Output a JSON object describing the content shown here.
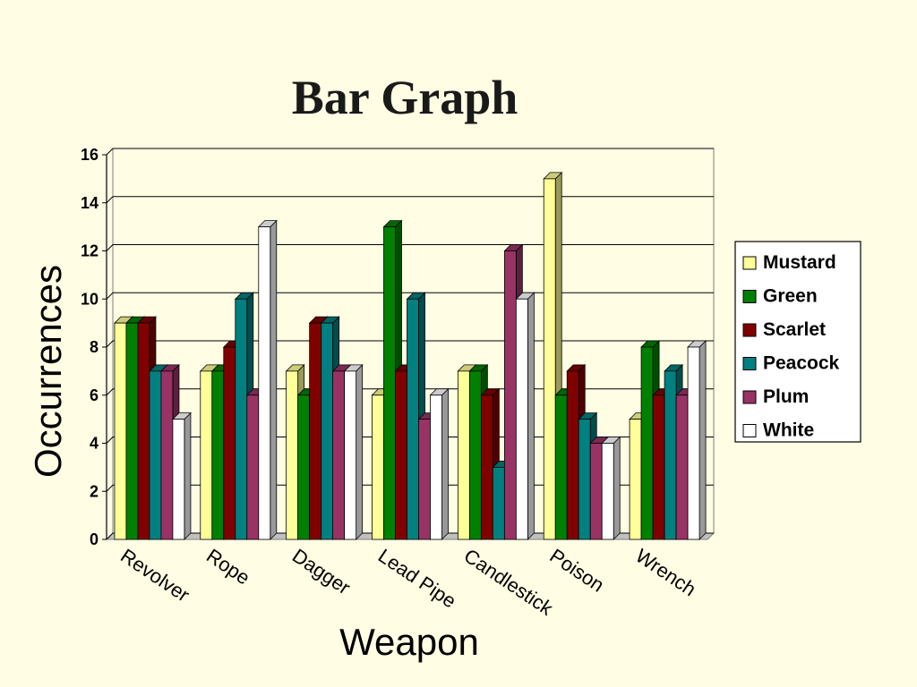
{
  "chart_data": {
    "type": "bar",
    "title": "Bar Graph",
    "xlabel": "Weapon",
    "ylabel": "Occurrences",
    "ylim": [
      0,
      16
    ],
    "yticks": [
      0,
      2,
      4,
      6,
      8,
      10,
      12,
      14,
      16
    ],
    "grid": true,
    "legend_position": "right",
    "categories": [
      "Revolver",
      "Rope",
      "Dagger",
      "Lead Pipe",
      "Candlestick",
      "Poison",
      "Wrench"
    ],
    "series": [
      {
        "name": "Mustard",
        "color": "#FFFF99",
        "values": [
          9,
          7,
          7,
          6,
          7,
          15,
          5
        ]
      },
      {
        "name": "Green",
        "color": "#008000",
        "values": [
          9,
          7,
          6,
          13,
          7,
          6,
          8
        ]
      },
      {
        "name": "Scarlet",
        "color": "#800000",
        "values": [
          9,
          8,
          9,
          7,
          6,
          7,
          6
        ]
      },
      {
        "name": "Peacock",
        "color": "#008080",
        "values": [
          7,
          10,
          9,
          10,
          3,
          5,
          7
        ]
      },
      {
        "name": "Plum",
        "color": "#993366",
        "values": [
          7,
          6,
          7,
          5,
          12,
          4,
          6
        ]
      },
      {
        "name": "White",
        "color": "#FFFFFF",
        "values": [
          5,
          13,
          7,
          6,
          10,
          4,
          8
        ]
      }
    ]
  }
}
